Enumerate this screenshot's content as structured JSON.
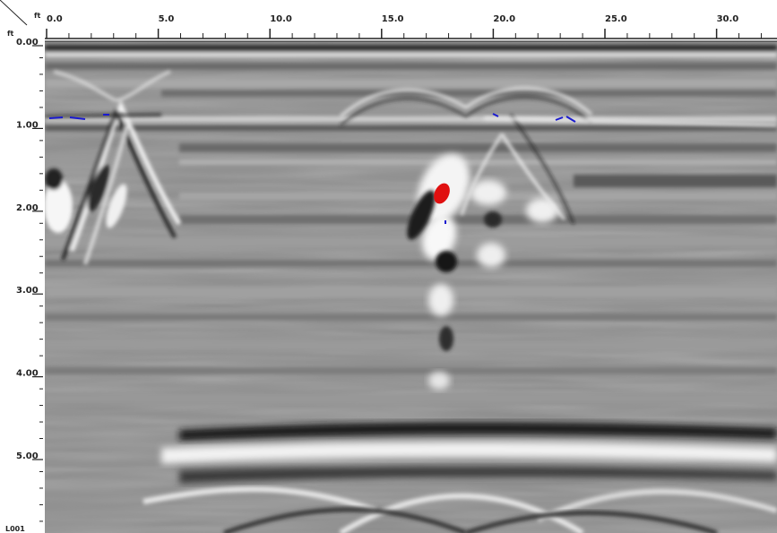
{
  "axes": {
    "x_unit": "ft",
    "y_unit": "ft",
    "x_ticks": [
      "0.0",
      "5.0",
      "10.0",
      "15.0",
      "20.0",
      "25.0",
      "30.0"
    ],
    "y_ticks": [
      "0.00",
      "1.00",
      "2.00",
      "3.00",
      "4.00",
      "5.00"
    ]
  },
  "line_label": "L001",
  "palette": {
    "background": "#ffffff",
    "radar_base": "#8f8f8f",
    "ruler": "#222222",
    "hot_anomaly": "#e01010",
    "cold_anomaly": "#1a1ad0"
  }
}
